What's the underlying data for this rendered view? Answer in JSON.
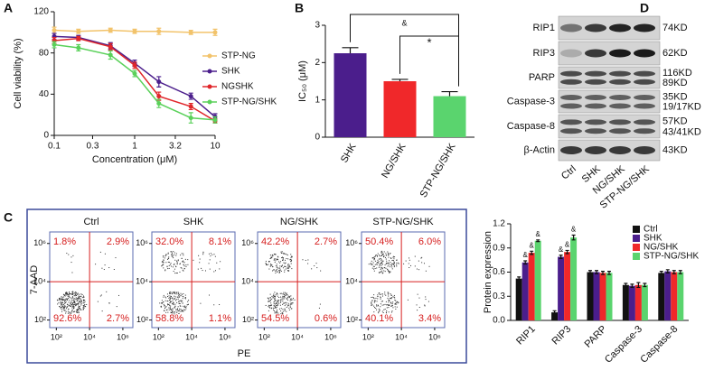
{
  "panel_labels": [
    "A",
    "B",
    "C",
    "D"
  ],
  "chart_data": [
    {
      "type": "line",
      "xlabel": "Concentration (μM)",
      "ylabel": "Cell viability (%)",
      "x": [
        0.1,
        0.2,
        0.5,
        1,
        2,
        5,
        10
      ],
      "xscale": "log",
      "xlim": [
        0.1,
        10
      ],
      "xticks": [
        0.1,
        0.3,
        1,
        3.2,
        10
      ],
      "ylim": [
        0,
        120
      ],
      "yticks": [
        0,
        40,
        80,
        120
      ],
      "legend": "upper right",
      "series": [
        {
          "name": "STP-NG",
          "color": "#f2c36b",
          "values": [
            102,
            101,
            102,
            101,
            101,
            100,
            100
          ],
          "errors": [
            3,
            2,
            2,
            2,
            3,
            2,
            3
          ]
        },
        {
          "name": "SHK",
          "color": "#4b1e8c",
          "values": [
            96,
            95,
            87,
            70,
            52,
            38,
            18
          ],
          "errors": [
            3,
            2,
            3,
            3,
            5,
            3,
            3
          ]
        },
        {
          "name": "NGSHK",
          "color": "#e0262a",
          "values": [
            92,
            94,
            86,
            68,
            38,
            28,
            14
          ],
          "errors": [
            3,
            2,
            3,
            3,
            4,
            3,
            2
          ]
        },
        {
          "name": "STP-NG/SHK",
          "color": "#5ad15a",
          "values": [
            88,
            85,
            78,
            60,
            31,
            17,
            15
          ],
          "errors": [
            3,
            3,
            4,
            3,
            4,
            5,
            3
          ]
        }
      ]
    },
    {
      "type": "bar",
      "ylabel": "IC₅₀ (μM)",
      "categories": [
        "SHK",
        "NG/SHK",
        "STP-NG/SHK"
      ],
      "values": [
        2.25,
        1.5,
        1.1
      ],
      "errors": [
        0.15,
        0.05,
        0.12
      ],
      "colors": [
        "#4b1e8c",
        "#f0282a",
        "#5ad46e"
      ],
      "ylim": [
        0,
        3
      ],
      "yticks": [
        0,
        1,
        2,
        3
      ],
      "annotations": [
        "&",
        "*"
      ]
    },
    {
      "type": "quadrant",
      "xlabel": "PE",
      "ylabel": "7-AAD",
      "xscale": "log",
      "yscale": "log",
      "xlim": [
        40,
        4000000
      ],
      "ylim": [
        40,
        4000000
      ],
      "gate": [
        10000,
        10000
      ],
      "xticks": [
        {
          "value": 100,
          "label": "10²"
        },
        {
          "value": 10000,
          "label": "10⁴"
        },
        {
          "value": 1000000,
          "label": "10⁶"
        }
      ],
      "yticks": [
        {
          "value": 100,
          "label": "10²"
        },
        {
          "value": 10000,
          "label": "10⁴"
        },
        {
          "value": 1000000,
          "label": "10⁶"
        }
      ],
      "plots": [
        {
          "title": "Ctrl",
          "values": [
            1.8,
            2.9,
            92.6,
            2.7
          ],
          "value_labels": [
            "1.8%",
            "2.9%",
            "92.6%",
            "2.7%"
          ]
        },
        {
          "title": "SHK",
          "values": [
            32.0,
            8.1,
            58.8,
            1.1
          ],
          "value_labels": [
            "32.0%",
            "8.1%",
            "58.8%",
            "1.1%"
          ]
        },
        {
          "title": "NG/SHK",
          "values": [
            42.2,
            2.7,
            54.5,
            0.6
          ],
          "value_labels": [
            "42.2%",
            "2.7%",
            "54.5%",
            "0.6%"
          ]
        },
        {
          "title": "STP-NG/SHK",
          "values": [
            50.4,
            6.0,
            40.1,
            3.4
          ],
          "value_labels": [
            "50.4%",
            "6.0%",
            "40.1%",
            "3.4%"
          ]
        }
      ]
    },
    {
      "type": "grouped_bar",
      "ylabel": "Protein expression",
      "categories": [
        "RIP1",
        "RIP3",
        "PARP",
        "Caspase-3",
        "Caspase-8"
      ],
      "ylim": [
        0,
        1.2
      ],
      "yticks": [
        {
          "value": 0,
          "label": "0.0"
        },
        0.3,
        0.6,
        0.9,
        1.2
      ],
      "legend": "upper right",
      "series": [
        {
          "name": "Ctrl",
          "color": "#111111",
          "values": [
            0.52,
            0.1,
            0.6,
            0.44,
            0.59
          ],
          "errors": [
            0.02,
            0.02,
            0.02,
            0.02,
            0.02
          ],
          "annotations": [
            null,
            null,
            null,
            null,
            null
          ]
        },
        {
          "name": "SHK",
          "color": "#4b1e8c",
          "values": [
            0.72,
            0.79,
            0.6,
            0.43,
            0.61
          ],
          "errors": [
            0.02,
            0.02,
            0.02,
            0.02,
            0.02
          ],
          "annotations": [
            "&",
            "&",
            null,
            null,
            null
          ]
        },
        {
          "name": "NG/SHK",
          "color": "#f0282a",
          "values": [
            0.84,
            0.85,
            0.59,
            0.44,
            0.6
          ],
          "errors": [
            0.02,
            0.02,
            0.02,
            0.03,
            0.02
          ],
          "annotations": [
            "&",
            "&",
            null,
            null,
            null
          ]
        },
        {
          "name": "STP-NG/SHK",
          "color": "#5ad46e",
          "values": [
            0.99,
            1.03,
            0.59,
            0.44,
            0.6
          ],
          "errors": [
            0.01,
            0.03,
            0.02,
            0.02,
            0.02
          ],
          "annotations": [
            "&",
            "&",
            null,
            null,
            null
          ]
        }
      ]
    }
  ],
  "western_blot": {
    "proteins": [
      {
        "name": "RIP1",
        "sizes": [
          "74KD"
        ]
      },
      {
        "name": "RIP3",
        "sizes": [
          "62KD"
        ]
      },
      {
        "name": "PARP",
        "sizes": [
          "116KD",
          "89KD"
        ]
      },
      {
        "name": "Caspase-3",
        "sizes": [
          "35KD",
          "19/17KD"
        ]
      },
      {
        "name": "Caspase-8",
        "sizes": [
          "57KD",
          "43/41KD"
        ]
      },
      {
        "name": "β-Actin",
        "sizes": [
          "43KD"
        ]
      }
    ],
    "lanes": [
      "Ctrl",
      "SHK",
      "NG/SHK",
      "STP-NG/SHK"
    ]
  }
}
